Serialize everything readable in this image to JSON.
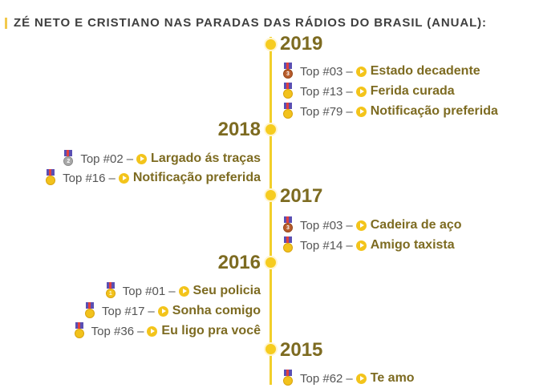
{
  "title": "ZÉ NETO E CRISTIANO NAS PARADAS DAS RÁDIOS DO BRASIL (ANUAL):",
  "colors": {
    "accent": "#f2cf2a",
    "text_primary": "#7d6b21",
    "text_secondary": "#555555",
    "dot": "#f6cc20"
  },
  "years": [
    {
      "year": "2019",
      "entries": [
        {
          "rank": "Top #03",
          "dash": "–",
          "song": "Estado decadente",
          "medal": "bronze",
          "medal_num": "3"
        },
        {
          "rank": "Top #13",
          "dash": "–",
          "song": "Ferida curada",
          "medal": "gold",
          "medal_num": ""
        },
        {
          "rank": "Top #79",
          "dash": "–",
          "song": "Notificação preferida",
          "medal": "gold",
          "medal_num": ""
        }
      ]
    },
    {
      "year": "2018",
      "entries": [
        {
          "rank": "Top #02",
          "dash": "–",
          "song": "Largado ás traças",
          "medal": "silver",
          "medal_num": "2"
        },
        {
          "rank": "Top #16",
          "dash": "–",
          "song": "Notificação preferida",
          "medal": "gold",
          "medal_num": ""
        }
      ]
    },
    {
      "year": "2017",
      "entries": [
        {
          "rank": "Top #03",
          "dash": "–",
          "song": "Cadeira de aço",
          "medal": "bronze",
          "medal_num": "3"
        },
        {
          "rank": "Top #14",
          "dash": "–",
          "song": "Amigo taxista",
          "medal": "gold",
          "medal_num": ""
        }
      ]
    },
    {
      "year": "2016",
      "entries": [
        {
          "rank": "Top #01",
          "dash": "–",
          "song": "Seu policia",
          "medal": "gold",
          "medal_num": "1"
        },
        {
          "rank": "Top #17",
          "dash": "–",
          "song": "Sonha comigo",
          "medal": "gold",
          "medal_num": ""
        },
        {
          "rank": "Top #36",
          "dash": "–",
          "song": "Eu ligo pra você",
          "medal": "gold",
          "medal_num": ""
        }
      ]
    },
    {
      "year": "2015",
      "entries": [
        {
          "rank": "Top #62",
          "dash": "–",
          "song": "Te amo",
          "medal": "gold",
          "medal_num": ""
        }
      ]
    }
  ],
  "icons": {
    "medal": "medal-icon",
    "play": "play-circle-icon"
  }
}
